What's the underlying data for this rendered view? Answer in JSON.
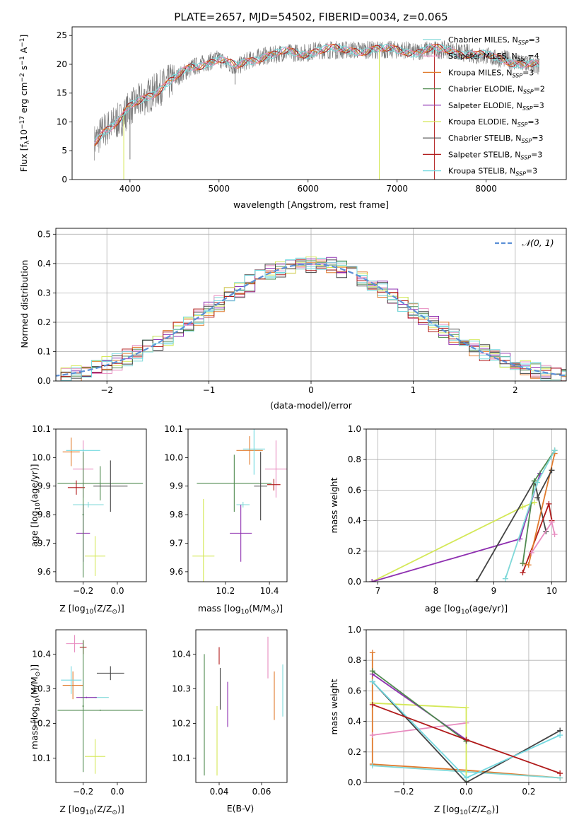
{
  "colors": {
    "chabrier_miles": "#7fd8d8",
    "salpeter_miles": "#e88cc0",
    "kroupa_miles": "#e07b2e",
    "chabrier_elodie": "#4f8a4f",
    "salpeter_elodie": "#8e2fb0",
    "kroupa_elodie": "#d4e857",
    "chabrier_stelib": "#444444",
    "salpeter_stelib": "#b01a1a",
    "kroupa_stelib": "#74d9e0",
    "normal": "#5b8fd6",
    "data": "#777777"
  },
  "legend_series": [
    {
      "key": "chabrier_miles",
      "label": "Chabrier MILES, N",
      "sub": "SSP",
      "n": "=3"
    },
    {
      "key": "salpeter_miles",
      "label": "Salpeter MILES, N",
      "sub": "SSP",
      "n": "=4"
    },
    {
      "key": "kroupa_miles",
      "label": "Kroupa MILES, N",
      "sub": "SSP",
      "n": "=3"
    },
    {
      "key": "chabrier_elodie",
      "label": "Chabrier ELODIE, N",
      "sub": "SSP",
      "n": "=2"
    },
    {
      "key": "salpeter_elodie",
      "label": "Salpeter ELODIE, N",
      "sub": "SSP",
      "n": "=3"
    },
    {
      "key": "kroupa_elodie",
      "label": "Kroupa ELODIE, N",
      "sub": "SSP",
      "n": "=3"
    },
    {
      "key": "chabrier_stelib",
      "label": "Chabrier STELIB, N",
      "sub": "SSP",
      "n": "=3"
    },
    {
      "key": "salpeter_stelib",
      "label": "Salpeter STELIB, N",
      "sub": "SSP",
      "n": "=3"
    },
    {
      "key": "kroupa_stelib",
      "label": "Kroupa STELIB, N",
      "sub": "SSP",
      "n": "=3"
    }
  ],
  "chart_data": [
    {
      "id": "spectrum",
      "type": "line",
      "title": "PLATE=2657, MJD=54502, FIBERID=0034, z=0.065",
      "xlabel": "wavelength [Angstrom, rest frame]",
      "ylabel_parts": [
        "Flux [f",
        "λ",
        "10",
        "−17",
        " erg cm",
        "−2",
        " s",
        "−1",
        " A",
        "−1",
        "]"
      ],
      "xlim": [
        3350,
        8900
      ],
      "ylim": [
        0,
        26.5
      ],
      "xticks": [
        4000,
        5000,
        6000,
        7000,
        8000
      ],
      "yticks": [
        0,
        5,
        10,
        15,
        20,
        25
      ],
      "continuum": {
        "x": [
          3600,
          3700,
          3800,
          3900,
          4000,
          4100,
          4200,
          4300,
          4400,
          4500,
          4600,
          4700,
          4800,
          4900,
          5000,
          5100,
          5200,
          5300,
          5400,
          5500,
          5600,
          5700,
          5800,
          5900,
          6000,
          6100,
          6200,
          6300,
          6400,
          6500,
          6600,
          6700,
          6800,
          6900,
          7000,
          7100,
          7200,
          7300,
          7400,
          7500,
          7600,
          7700,
          7800,
          7900,
          8000,
          8100,
          8200,
          8300,
          8400,
          8500,
          8600
        ],
        "y": [
          6.5,
          8.5,
          9.5,
          10.5,
          12.5,
          13.5,
          14.5,
          15.5,
          16.5,
          17.5,
          18.5,
          19.5,
          20.0,
          20.5,
          21.0,
          20.0,
          19.5,
          20.5,
          21.0,
          21.5,
          21.5,
          22.0,
          22.0,
          22.0,
          22.0,
          22.5,
          22.5,
          22.5,
          22.5,
          22.5,
          22.5,
          22.5,
          22.5,
          22.5,
          22.5,
          22.5,
          22.0,
          22.5,
          22.5,
          22.5,
          22.5,
          22.0,
          22.0,
          21.5,
          21.5,
          21.0,
          21.0,
          20.5,
          20.0,
          20.0,
          19.5
        ]
      },
      "spikes": [
        {
          "x": 3930,
          "y": 0.0,
          "series": "kroupa_elodie"
        },
        {
          "x": 6800,
          "y": 0.0,
          "series": "kroupa_elodie"
        },
        {
          "x": 7420,
          "y": 0.0,
          "series": "salpeter_stelib"
        },
        {
          "x": 4000,
          "y": 3.5,
          "series": "data"
        },
        {
          "x": 5180,
          "y": 16.5,
          "series": "data"
        },
        {
          "x": 8560,
          "y": 18.5,
          "series": "data"
        }
      ]
    },
    {
      "id": "residuals",
      "type": "line",
      "xlabel": "(data-model)/error",
      "ylabel": "Normed distribution",
      "xlim": [
        -2.5,
        2.5
      ],
      "ylim": [
        0,
        0.52
      ],
      "xticks": [
        -2,
        -1,
        0,
        1,
        2
      ],
      "yticks": [
        0.0,
        0.1,
        0.2,
        0.3,
        0.4,
        0.5
      ],
      "grid": true,
      "legend": "top-right",
      "legend_label": "𝒩(0, 1)",
      "bin_width": 0.1
    },
    {
      "id": "age_vs_z",
      "type": "scatter",
      "xlabel_parts": [
        "Z [log",
        "10",
        "(Z/Z",
        "⊙",
        ")]"
      ],
      "ylabel_parts": [
        "age  [log",
        "10",
        "(age/yr)]"
      ],
      "xlim": [
        -0.36,
        0.17
      ],
      "ylim": [
        9.565,
        10.1
      ],
      "xticks": [
        -0.2,
        0.0
      ],
      "yticks": [
        9.6,
        9.7,
        9.8,
        9.9,
        10.0,
        10.1
      ],
      "points": [
        {
          "s": "chabrier_miles",
          "x": -0.17,
          "y": 9.835,
          "ex": 0.09,
          "ey": 0.01
        },
        {
          "s": "salpeter_miles",
          "x": -0.2,
          "y": 9.96,
          "ex": 0.06,
          "ey": 0.1
        },
        {
          "s": "kroupa_miles",
          "x": -0.27,
          "y": 10.02,
          "ex": 0.05,
          "ey": 0.05
        },
        {
          "s": "chabrier_elodie",
          "x": -0.1,
          "y": 9.91,
          "ex": 0.25,
          "ey": 0.06
        },
        {
          "s": "salpeter_elodie",
          "x": -0.2,
          "y": 9.735,
          "ex": 0.04,
          "ey": 0.1
        },
        {
          "s": "kroupa_elodie",
          "x": -0.13,
          "y": 9.655,
          "ex": 0.06,
          "ey": 0.07
        },
        {
          "s": "chabrier_stelib",
          "x": -0.04,
          "y": 9.9,
          "ex": 0.1,
          "ey": 0.09
        },
        {
          "s": "salpeter_stelib",
          "x": -0.24,
          "y": 9.895,
          "ex": 0.05,
          "ey": 0.025
        },
        {
          "s": "kroupa_stelib",
          "x": -0.2,
          "y": 10.025,
          "ex": 0.1,
          "ey": 0.005
        },
        {
          "s": "chabrier_elodie",
          "x": -0.2,
          "y": 9.8,
          "ex": 0.005,
          "ey": 0.22
        }
      ]
    },
    {
      "id": "age_vs_mass",
      "type": "scatter",
      "xlabel_parts": [
        "mass [log",
        "10",
        "(M/M",
        "⊙",
        ")]"
      ],
      "xlim": [
        10.03,
        10.48
      ],
      "ylim": [
        9.565,
        10.1
      ],
      "xticks": [
        10.2,
        10.4
      ],
      "yticks": [
        9.6,
        9.7,
        9.8,
        9.9,
        10.0,
        10.1
      ],
      "points": [
        {
          "s": "chabrier_miles",
          "x": 10.28,
          "y": 9.835,
          "ex": 0.03,
          "ey": 0.01
        },
        {
          "s": "salpeter_miles",
          "x": 10.43,
          "y": 9.96,
          "ex": 0.05,
          "ey": 0.1
        },
        {
          "s": "kroupa_miles",
          "x": 10.31,
          "y": 10.025,
          "ex": 0.06,
          "ey": 0.05
        },
        {
          "s": "chabrier_elodie",
          "x": 10.24,
          "y": 9.91,
          "ex": 0.17,
          "ey": 0.1
        },
        {
          "s": "salpeter_elodie",
          "x": 10.27,
          "y": 9.735,
          "ex": 0.05,
          "ey": 0.1
        },
        {
          "s": "kroupa_elodie",
          "x": 10.1,
          "y": 9.655,
          "ex": 0.05,
          "ey": 0.2
        },
        {
          "s": "chabrier_stelib",
          "x": 10.36,
          "y": 9.9,
          "ex": 0.03,
          "ey": 0.12
        },
        {
          "s": "salpeter_stelib",
          "x": 10.42,
          "y": 9.905,
          "ex": 0.03,
          "ey": 0.02
        },
        {
          "s": "kroupa_stelib",
          "x": 10.33,
          "y": 10.03,
          "ex": 0.05,
          "ey": 0.09
        }
      ]
    },
    {
      "id": "mass_weight_vs_age",
      "type": "line",
      "xlabel_parts": [
        "age  [log",
        "10",
        "(age/yr)]"
      ],
      "ylabel": "mass weight",
      "xlim": [
        6.8,
        10.25
      ],
      "ylim": [
        0,
        1.0
      ],
      "xticks": [
        7,
        8,
        9,
        10
      ],
      "yticks": [
        0.0,
        0.2,
        0.4,
        0.6,
        0.8,
        1.0
      ],
      "grid": true,
      "series": [
        {
          "s": "kroupa_elodie",
          "x": [
            6.9,
            9.5,
            9.7
          ],
          "y": [
            0.0,
            0.49,
            0.52
          ]
        },
        {
          "s": "salpeter_elodie",
          "x": [
            6.9,
            9.45,
            9.8
          ],
          "y": [
            0.0,
            0.28,
            0.71
          ]
        },
        {
          "s": "chabrier_stelib",
          "x": [
            8.7,
            9.7,
            9.9
          ],
          "y": [
            0.0,
            0.66,
            0.33
          ]
        },
        {
          "s": "salpeter_stelib",
          "x": [
            9.5,
            9.95,
            10.0
          ],
          "y": [
            0.06,
            0.51,
            0.4
          ]
        },
        {
          "s": "kroupa_miles",
          "x": [
            9.5,
            9.6,
            10.05
          ],
          "y": [
            0.12,
            0.11,
            0.84
          ]
        },
        {
          "s": "chabrier_elodie",
          "x": [
            9.5,
            9.7,
            10.05
          ],
          "y": [
            0.12,
            0.66,
            0.86
          ]
        },
        {
          "s": "chabrier_miles",
          "x": [
            9.2,
            9.75,
            10.05
          ],
          "y": [
            0.02,
            0.65,
            0.86
          ]
        },
        {
          "s": "salpeter_miles",
          "x": [
            9.65,
            10.0,
            10.05
          ],
          "y": [
            0.19,
            0.39,
            0.31
          ]
        },
        {
          "s": "chabrier_stelib",
          "x": [
            9.75,
            10.0
          ],
          "y": [
            0.55,
            0.73
          ]
        }
      ]
    },
    {
      "id": "mass_vs_z",
      "type": "scatter",
      "xlabel_parts": [
        "Z [log",
        "10",
        "(Z/Z",
        "⊙",
        ")]"
      ],
      "ylabel_parts": [
        "mass [log",
        "10",
        "(M/M",
        "⊙",
        ")]"
      ],
      "xlim": [
        -0.36,
        0.17
      ],
      "ylim": [
        10.03,
        10.47
      ],
      "xticks": [
        -0.2,
        0.0
      ],
      "yticks": [
        10.1,
        10.2,
        10.3,
        10.4
      ],
      "points": [
        {
          "s": "chabrier_miles",
          "x": -0.13,
          "y": 10.275,
          "ex": 0.08,
          "ey": 0.002
        },
        {
          "s": "salpeter_miles",
          "x": -0.25,
          "y": 10.43,
          "ex": 0.05,
          "ey": 0.025
        },
        {
          "s": "kroupa_miles",
          "x": -0.26,
          "y": 10.31,
          "ex": 0.06,
          "ey": 0.04
        },
        {
          "s": "chabrier_elodie",
          "x": -0.1,
          "y": 10.238,
          "ex": 0.25,
          "ey": 0.002
        },
        {
          "s": "salpeter_elodie",
          "x": -0.18,
          "y": 10.275,
          "ex": 0.06,
          "ey": 0.002
        },
        {
          "s": "kroupa_elodie",
          "x": -0.13,
          "y": 10.105,
          "ex": 0.06,
          "ey": 0.05
        },
        {
          "s": "chabrier_stelib",
          "x": -0.04,
          "y": 10.345,
          "ex": 0.08,
          "ey": 0.02
        },
        {
          "s": "salpeter_stelib",
          "x": -0.2,
          "y": 10.42,
          "ex": 0.02,
          "ey": 0.02
        },
        {
          "s": "kroupa_stelib",
          "x": -0.27,
          "y": 10.325,
          "ex": 0.06,
          "ey": 0.04
        },
        {
          "s": "chabrier_elodie",
          "x": -0.2,
          "y": 10.25,
          "ex": 0.005,
          "ey": 0.19
        }
      ]
    },
    {
      "id": "mass_vs_ebv",
      "type": "scatter",
      "xlabel": "E(B-V)",
      "xlim": [
        0.029,
        0.072
      ],
      "ylim": [
        10.03,
        10.47
      ],
      "xticks": [
        0.04,
        0.06
      ],
      "yticks": [
        10.1,
        10.2,
        10.3,
        10.4
      ],
      "points": [
        {
          "s": "chabrier_elodie",
          "x": 0.033,
          "y": 10.225,
          "ey": 0.175
        },
        {
          "s": "kroupa_elodie",
          "x": 0.039,
          "y": 10.15,
          "ey": 0.1
        },
        {
          "s": "salpeter_stelib",
          "x": 0.04,
          "y": 10.395,
          "ey": 0.025
        },
        {
          "s": "chabrier_stelib",
          "x": 0.0405,
          "y": 10.3,
          "ey": 0.06
        },
        {
          "s": "salpeter_elodie",
          "x": 0.044,
          "y": 10.255,
          "ey": 0.065
        },
        {
          "s": "salpeter_miles",
          "x": 0.063,
          "y": 10.39,
          "ey": 0.06
        },
        {
          "s": "kroupa_miles",
          "x": 0.066,
          "y": 10.28,
          "ey": 0.07
        },
        {
          "s": "chabrier_miles",
          "x": 0.07,
          "y": 10.295,
          "ey": 0.075
        }
      ]
    },
    {
      "id": "mass_weight_vs_z",
      "type": "line",
      "xlabel_parts": [
        "Z [log",
        "10",
        "(Z/Z",
        "⊙",
        ")]"
      ],
      "ylabel": "mass weight",
      "xlim": [
        -0.32,
        0.32
      ],
      "ylim": [
        0,
        1.0
      ],
      "xticks": [
        -0.2,
        0.0,
        0.2
      ],
      "yticks": [
        0.0,
        0.2,
        0.4,
        0.6,
        0.8,
        1.0
      ],
      "grid": true,
      "series": [
        {
          "s": "kroupa_miles",
          "x": [
            -0.3,
            -0.3,
            0.0,
            0.3
          ],
          "y": [
            0.85,
            0.12,
            0.08,
            0.03
          ]
        },
        {
          "s": "chabrier_miles",
          "x": [
            -0.3,
            0.0,
            0.3
          ],
          "y": [
            0.11,
            0.07,
            0.03
          ]
        },
        {
          "s": "salpeter_miles",
          "x": [
            -0.3,
            0.0
          ],
          "y": [
            0.31,
            0.39
          ]
        },
        {
          "s": "kroupa_elodie",
          "x": [
            -0.3,
            0.0,
            0.0
          ],
          "y": [
            0.52,
            0.49,
            0.0
          ]
        },
        {
          "s": "salpeter_elodie",
          "x": [
            -0.3,
            0.0
          ],
          "y": [
            0.71,
            0.28
          ]
        },
        {
          "s": "chabrier_elodie",
          "x": [
            -0.3,
            0.0
          ],
          "y": [
            0.73,
            0.27
          ]
        },
        {
          "s": "chabrier_stelib",
          "x": [
            -0.3,
            0.0,
            0.3
          ],
          "y": [
            0.66,
            0.0,
            0.34
          ]
        },
        {
          "s": "kroupa_stelib",
          "x": [
            -0.3,
            0.0,
            0.3
          ],
          "y": [
            0.66,
            0.03,
            0.31
          ]
        },
        {
          "s": "salpeter_stelib",
          "x": [
            -0.3,
            0.0,
            0.3
          ],
          "y": [
            0.51,
            0.28,
            0.06
          ]
        }
      ]
    }
  ]
}
